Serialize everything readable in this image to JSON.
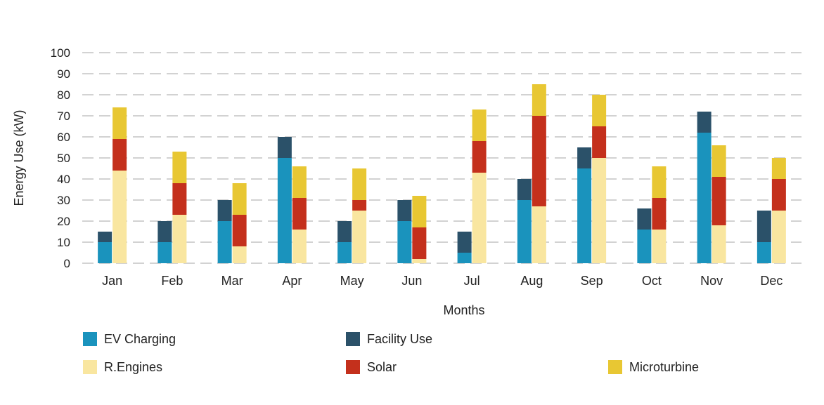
{
  "chart_data": {
    "type": "bar",
    "stacked_groups": true,
    "categories": [
      "Jan",
      "Feb",
      "Mar",
      "Apr",
      "May",
      "Jun",
      "Jul",
      "Aug",
      "Sep",
      "Oct",
      "Nov",
      "Dec"
    ],
    "xlabel": "Months",
    "ylabel": "Energy Use (kW)",
    "ylim": [
      0,
      100
    ],
    "yticks": [
      0,
      10,
      20,
      30,
      40,
      50,
      60,
      70,
      80,
      90,
      100
    ],
    "grid": true,
    "legend_position": "bottom",
    "stacks": [
      {
        "stack": "consumption",
        "series": [
          "EV Charging",
          "Facility Use"
        ]
      },
      {
        "stack": "generation",
        "series": [
          "R.Engines",
          "Solar",
          "Microturbine"
        ]
      }
    ],
    "series": [
      {
        "name": "EV Charging",
        "color": "#1a93bd",
        "stack": "consumption",
        "values": [
          10,
          10,
          20,
          50,
          10,
          20,
          5,
          30,
          45,
          16,
          62,
          10
        ]
      },
      {
        "name": "Facility Use",
        "color": "#2b5169",
        "stack": "consumption",
        "values": [
          5,
          10,
          10,
          10,
          10,
          10,
          10,
          10,
          10,
          10,
          10,
          15
        ]
      },
      {
        "name": "R.Engines",
        "color": "#f9e6a0",
        "stack": "generation",
        "values": [
          44,
          23,
          8,
          16,
          25,
          2,
          43,
          27,
          50,
          16,
          18,
          25
        ]
      },
      {
        "name": "Solar",
        "color": "#c4301c",
        "stack": "generation",
        "values": [
          15,
          15,
          15,
          15,
          5,
          15,
          15,
          43,
          15,
          15,
          23,
          15
        ]
      },
      {
        "name": "Microturbine",
        "color": "#e8c733",
        "stack": "generation",
        "values": [
          15,
          15,
          15,
          15,
          15,
          15,
          15,
          15,
          15,
          15,
          15,
          10
        ]
      }
    ]
  }
}
